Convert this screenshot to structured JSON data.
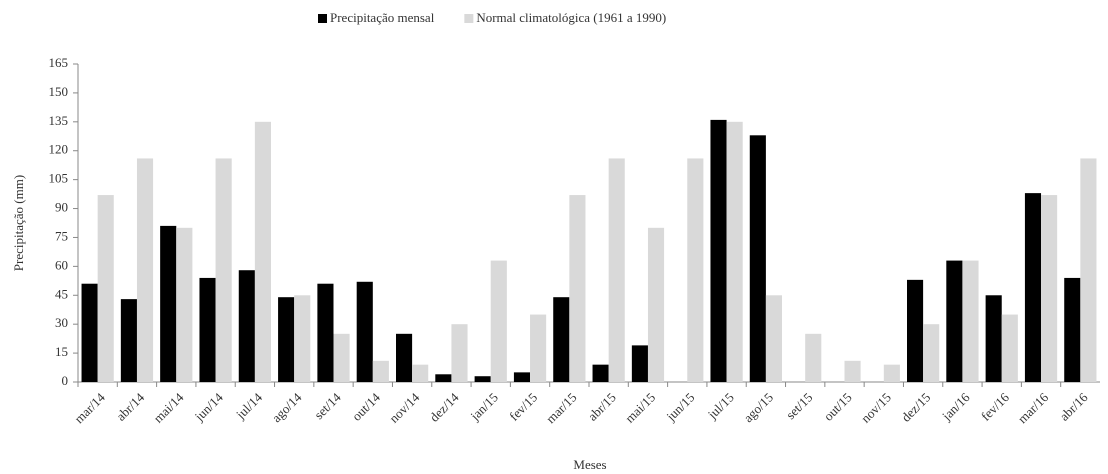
{
  "chart_data": {
    "type": "bar",
    "x_label": "Meses",
    "y_label": "Precipitação  (mm)",
    "categories": [
      "mar/14",
      "abr/14",
      "mai/14",
      "jun/14",
      "jul/14",
      "ago/14",
      "set/14",
      "out/14",
      "nov/14",
      "dez/14",
      "jan/15",
      "fev/15",
      "mar/15",
      "abr/15",
      "mai/15",
      "jun/15",
      "jul/15",
      "ago/15",
      "set/15",
      "out/15",
      "nov/15",
      "dez/15",
      "jan/16",
      "fev/16",
      "mar/16",
      "abr/16"
    ],
    "series": [
      {
        "name": "Precipitação mensal",
        "color": "#000000",
        "values": [
          51,
          43,
          81,
          54,
          58,
          44,
          51,
          52,
          25,
          4,
          3,
          5,
          44,
          9,
          19,
          0,
          136,
          128,
          0,
          0,
          0,
          53,
          63,
          45,
          98,
          54
        ]
      },
      {
        "name": "Normal climatológica (1961 a 1990)",
        "color": "#d9d9d9",
        "values": [
          97,
          116,
          80,
          116,
          135,
          45,
          25,
          11,
          9,
          30,
          63,
          35,
          97,
          116,
          80,
          116,
          135,
          45,
          25,
          11,
          9,
          30,
          63,
          35,
          97,
          116
        ]
      }
    ],
    "ylim": [
      0,
      165
    ],
    "yticks": [
      0,
      15,
      30,
      45,
      60,
      75,
      90,
      105,
      120,
      135,
      150,
      165
    ],
    "legend": "top",
    "grid": false
  }
}
